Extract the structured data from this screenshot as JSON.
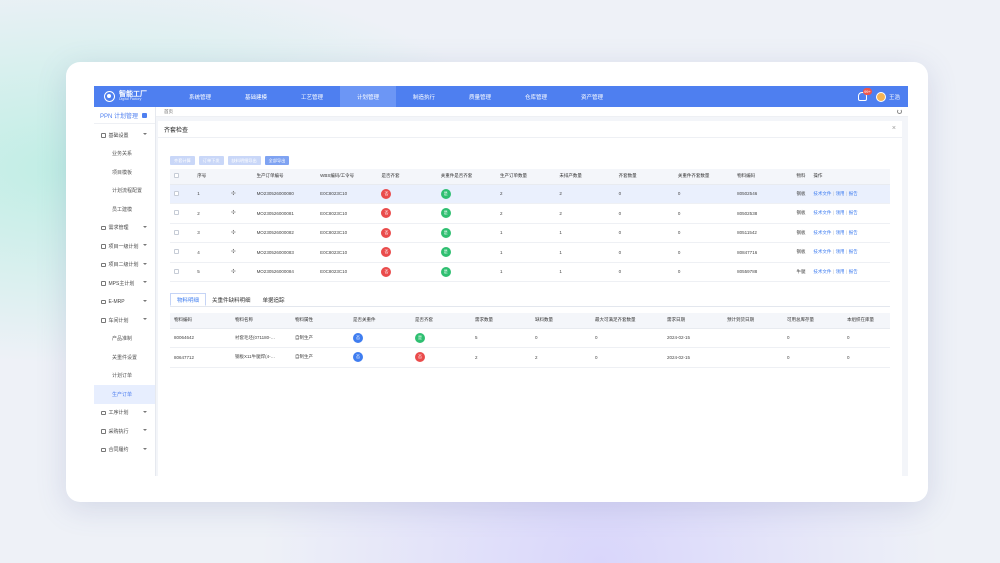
{
  "brand": {
    "name_cn": "智能工厂",
    "name_en": "Digital Factory"
  },
  "topnav": [
    "系统管理",
    "基础建模",
    "工艺管理",
    "计划管理",
    "制造执行",
    "质量管理",
    "仓库管理",
    "资产管理"
  ],
  "topnav_active_index": 3,
  "user": {
    "badge": "99+",
    "name": "王浩"
  },
  "sidebar": {
    "title": "PPN 计划管理",
    "items": [
      {
        "label": "基础设置",
        "type": "group",
        "icon": "gear-icon"
      },
      {
        "label": "业务关系",
        "type": "sub"
      },
      {
        "label": "项目模板",
        "type": "sub"
      },
      {
        "label": "计划流程配置",
        "type": "sub"
      },
      {
        "label": "员工建模",
        "type": "sub"
      },
      {
        "label": "需求管理",
        "type": "group",
        "icon": "demand-icon"
      },
      {
        "label": "项目一级计划",
        "type": "group",
        "icon": "plan-icon"
      },
      {
        "label": "项目二级计划",
        "type": "group",
        "icon": "plan-icon"
      },
      {
        "label": "MPS主计划",
        "type": "group",
        "icon": "mps-icon"
      },
      {
        "label": "E-MRP",
        "type": "group",
        "icon": "mrp-icon"
      },
      {
        "label": "车间计划",
        "type": "group",
        "icon": "workshop-icon"
      },
      {
        "label": "产品准制",
        "type": "sub"
      },
      {
        "label": "关重件设置",
        "type": "sub"
      },
      {
        "label": "计划订单",
        "type": "sub"
      },
      {
        "label": "生产订单",
        "type": "sub",
        "active": true
      },
      {
        "label": "工序计划",
        "type": "group",
        "icon": "process-icon"
      },
      {
        "label": "采购执行",
        "type": "group",
        "icon": "purchase-icon"
      },
      {
        "label": "合同履约",
        "type": "group",
        "icon": "contract-icon"
      }
    ]
  },
  "breadcrumb": "首页",
  "panel": {
    "title": "齐套检查",
    "buttons": [
      "齐套计算",
      "订单下发",
      "缺料明细导出",
      "全部导出"
    ],
    "orders": {
      "columns": [
        "",
        "序号",
        "",
        "生产订单编号",
        "WBS编码/工令号",
        "是否齐套",
        "关重件是否齐套",
        "生产订单数量",
        "未排产数量",
        "齐套数量",
        "关重件齐套数量",
        "物料编码",
        "物料",
        "操作"
      ],
      "rows": [
        {
          "seq": "1",
          "order_no": "MO230526000080",
          "wbs": "E0C8023C10",
          "kit": "否",
          "key_kit": "是",
          "qty": "2",
          "unscheduled": "2",
          "kit_qty": "0",
          "key_kit_qty": "0",
          "material_code": "80502546",
          "material": "钢板",
          "selected": true
        },
        {
          "seq": "2",
          "order_no": "MO230526000081",
          "wbs": "E0C8023C10",
          "kit": "否",
          "key_kit": "是",
          "qty": "2",
          "unscheduled": "2",
          "kit_qty": "0",
          "key_kit_qty": "0",
          "material_code": "80502538",
          "material": "钢板"
        },
        {
          "seq": "3",
          "order_no": "MO230526000082",
          "wbs": "E0C8023C10",
          "kit": "否",
          "key_kit": "是",
          "qty": "1",
          "unscheduled": "1",
          "kit_qty": "0",
          "key_kit_qty": "0",
          "material_code": "80511542",
          "material": "钢板"
        },
        {
          "seq": "4",
          "order_no": "MO230526000083",
          "wbs": "E0C8023C10",
          "kit": "否",
          "key_kit": "是",
          "qty": "1",
          "unscheduled": "1",
          "kit_qty": "0",
          "key_kit_qty": "0",
          "material_code": "80847716",
          "material": "钢板"
        },
        {
          "seq": "5",
          "order_no": "MO230526000084",
          "wbs": "E0C8023C10",
          "kit": "否",
          "key_kit": "是",
          "qty": "1",
          "unscheduled": "1",
          "kit_qty": "0",
          "key_kit_qty": "0",
          "material_code": "80559788",
          "material": "牛腿"
        }
      ],
      "actions": [
        "技术文件",
        "领用",
        "报告"
      ]
    },
    "tabs": [
      "物料明细",
      "关重件缺料明细",
      "单据追踪"
    ],
    "tabs_active_index": 0,
    "materials": {
      "columns": [
        "物料编码",
        "物料名称",
        "物料属性",
        "是否关重件",
        "是否齐套",
        "需求数量",
        "缺料数量",
        "最大可满足齐套数量",
        "需求日期",
        "预计到货日期",
        "可用总库存量",
        "本组织在库量"
      ],
      "rows": [
        {
          "code": "80064642",
          "name": "衬套毛坯(071180-…",
          "attr": "自制生产",
          "key": "否",
          "kit": "是",
          "demand": "5",
          "short": "0",
          "max_kit": "0",
          "demand_date": "2024-02-15",
          "eta": "",
          "avail": "0",
          "onhand": "0"
        },
        {
          "code": "80647712",
          "name": "钢板X11牛腿焊(4-…",
          "attr": "自制生产",
          "key": "否",
          "kit": "否",
          "demand": "2",
          "short": "2",
          "max_kit": "0",
          "demand_date": "2024-02-15",
          "eta": "",
          "avail": "0",
          "onhand": "0"
        }
      ]
    }
  },
  "colors": {
    "primary": "#4e7ff0",
    "red": "#ea4b4b",
    "green": "#2fbf71",
    "blue": "#3f7df0"
  }
}
